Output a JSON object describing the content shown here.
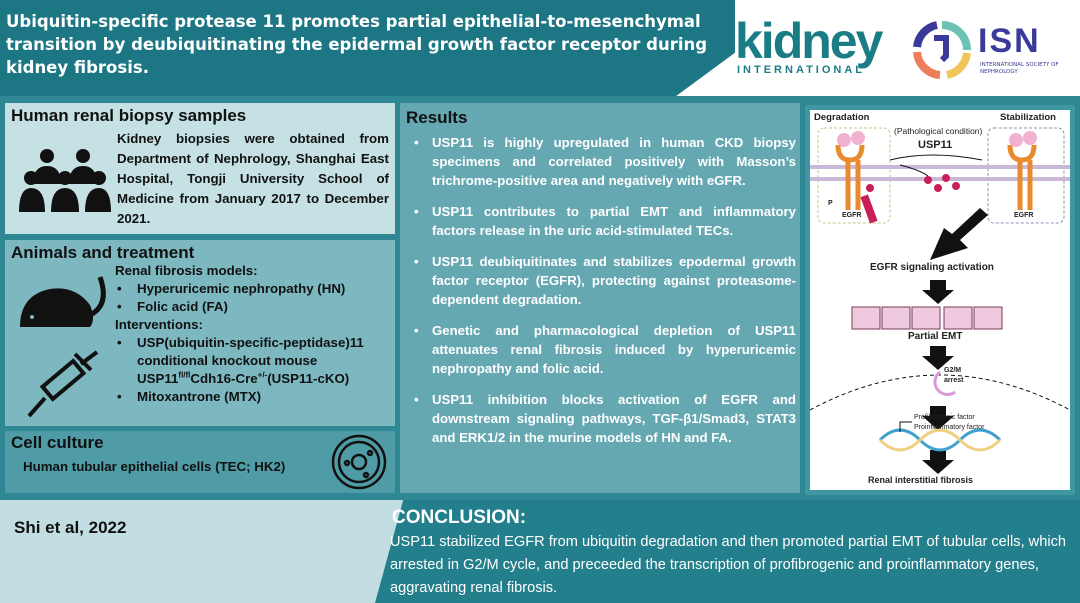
{
  "title": "Ubiquitin-specific protease 11 promotes partial epithelial-to-mesenchymal transition by deubiquitinating the epidermal growth factor receptor during kidney fibrosis.",
  "logos": {
    "kidney": "kidney",
    "kidney_sub": "INTERNATIONAL",
    "isn": "ISN",
    "isn_sub": "INTERNATIONAL SOCIETY OF NEPHROLOGY"
  },
  "human": {
    "heading": "Human renal biopsy samples",
    "text": "Kidney biopsies were obtained from Department of Nephrology, Shanghai East Hospital, Tongji University School of Medicine from January 2017 to December 2021.",
    "icon": "people-group-icon"
  },
  "animals": {
    "heading": "Animals and treatment",
    "models_label": "Renal fibrosis models:",
    "models": [
      "Hyperuricemic nephropathy (HN)",
      "Folic acid (FA)"
    ],
    "interventions_label": "Interventions:",
    "int1_a": "USP(ubiquitin-specific-peptidase)11 conditional knockout mouse",
    "int1_b": "USP11",
    "int1_sup1": "fl/fl",
    "int1_c": "Cdh16-Cre",
    "int1_sup2": "+/-",
    "int1_d": "(USP11-cKO)",
    "int2": "Mitoxantrone (MTX)",
    "icons": [
      "mouse-icon",
      "syringe-icon"
    ]
  },
  "cell": {
    "heading": "Cell culture",
    "text": "Human tubular epithelial cells (TEC; HK2)",
    "icon": "petri-dish-icon"
  },
  "results": {
    "heading": "Results",
    "items": [
      "USP11 is highly upregulated in human CKD biopsy specimens and correlated positively with Masson’s trichrome-positive area and negatively with eGFR.",
      "USP11 contributes to partial EMT and inflammatory factors release in the uric acid-stimulated TECs.",
      "USP11 deubiquitinates and stabilizes epodermal growth factor receptor (EGFR), protecting against proteasome-dependent degradation.",
      "Genetic and pharmacological depletion of USP11 attenuates renal fibrosis induced by hyperuricemic nephropathy and folic acid.",
      "USP11 inhibition blocks activation of EGFR and downstream signaling pathways, TGF-β1/Smad3, STAT3 and ERK1/2 in the murine models of HN and FA."
    ]
  },
  "diagram": {
    "degradation": "Degradation",
    "stabilization": "Stabilization",
    "condition": "(Pathological condition)",
    "usp11": "USP11",
    "egfr": "EGFR",
    "ub": "Ub",
    "p": "P",
    "signaling": "EGFR signaling activation",
    "emt": "Partial EMT",
    "g2m": "G2/M",
    "arrest": "arrest",
    "profib": "Profibrogenic factor",
    "proinf": "Proinflammatory factor",
    "fibrosis": "Renal interstitial fibrosis"
  },
  "citation": "Shi et al, 2022",
  "conclusion": {
    "heading": "CONCLUSION:",
    "text": "USP11 stabilized EGFR from ubiquitin degradation and then promoted partial EMT of tubular cells, which arrested in G2/M cycle, and preceeded the transcription of profibrogenic and proinflammatory genes, aggravating renal fibrosis."
  },
  "colors": {
    "header": "#1d7683",
    "panel_light": "#c6e1e4",
    "panel_mid": "#7db8c1",
    "panel_dark": "#4f9ba6",
    "results": "#65a8b2",
    "conclusion": "#237f8b",
    "kidney_logo": "#1a7d86",
    "isn_logo": "#3a3a9a"
  }
}
